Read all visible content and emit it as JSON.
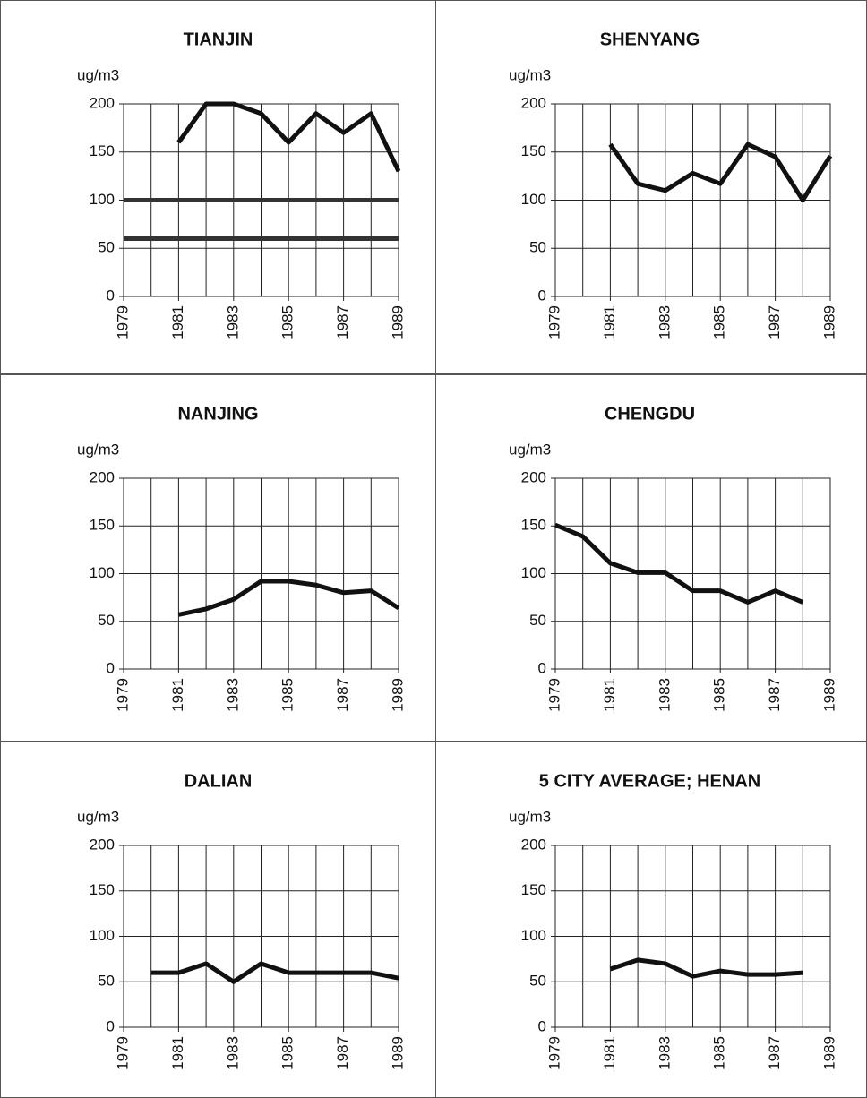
{
  "chart_data": [
    {
      "type": "line",
      "title": "TIANJIN",
      "ylabel": "ug/m3",
      "ylim": [
        0,
        200
      ],
      "yticks": [
        0,
        50,
        100,
        150,
        200
      ],
      "xlim": [
        1979,
        1989
      ],
      "xticks": [
        1979,
        1981,
        1983,
        1985,
        1987,
        1989
      ],
      "xminor": [
        1980,
        1982,
        1984,
        1986,
        1988
      ],
      "grid": true,
      "series": [
        {
          "color": "#111111",
          "x": [
            1981,
            1982,
            1983,
            1984,
            1985,
            1986,
            1987,
            1988,
            1989
          ],
          "values": [
            160,
            200,
            200,
            190,
            160,
            190,
            170,
            190,
            130
          ]
        },
        {
          "color": "#333333",
          "x": [
            1979,
            1989
          ],
          "values": [
            100,
            100
          ]
        },
        {
          "color": "#333333",
          "x": [
            1979,
            1989
          ],
          "values": [
            60,
            60
          ]
        }
      ]
    },
    {
      "type": "line",
      "title": "SHENYANG",
      "ylabel": "ug/m3",
      "ylim": [
        0,
        200
      ],
      "yticks": [
        0,
        50,
        100,
        150,
        200
      ],
      "xlim": [
        1979,
        1989
      ],
      "xticks": [
        1979,
        1981,
        1983,
        1985,
        1987,
        1989
      ],
      "xminor": [
        1980,
        1982,
        1984,
        1986,
        1988
      ],
      "grid": true,
      "series": [
        {
          "color": "#111111",
          "x": [
            1981,
            1982,
            1983,
            1984,
            1985,
            1986,
            1987,
            1988,
            1989
          ],
          "values": [
            158,
            117,
            110,
            128,
            117,
            158,
            145,
            100,
            146
          ]
        }
      ]
    },
    {
      "type": "line",
      "title": "NANJING",
      "ylabel": "ug/m3",
      "ylim": [
        0,
        200
      ],
      "yticks": [
        0,
        50,
        100,
        150,
        200
      ],
      "xlim": [
        1979,
        1989
      ],
      "xticks": [
        1979,
        1981,
        1983,
        1985,
        1987,
        1989
      ],
      "xminor": [
        1980,
        1982,
        1984,
        1986,
        1988
      ],
      "grid": true,
      "series": [
        {
          "color": "#111111",
          "x": [
            1981,
            1982,
            1983,
            1984,
            1985,
            1986,
            1987,
            1988,
            1989
          ],
          "values": [
            57,
            63,
            73,
            92,
            92,
            88,
            80,
            82,
            64
          ]
        }
      ]
    },
    {
      "type": "line",
      "title": "CHENGDU",
      "ylabel": "ug/m3",
      "ylim": [
        0,
        200
      ],
      "yticks": [
        0,
        50,
        100,
        150,
        200
      ],
      "xlim": [
        1979,
        1989
      ],
      "xticks": [
        1979,
        1981,
        1983,
        1985,
        1987,
        1989
      ],
      "xminor": [
        1980,
        1982,
        1984,
        1986,
        1988
      ],
      "grid": true,
      "series": [
        {
          "color": "#111111",
          "x": [
            1979,
            1980,
            1981,
            1982,
            1983,
            1984,
            1985,
            1986,
            1987,
            1988
          ],
          "values": [
            151,
            139,
            111,
            101,
            101,
            82,
            82,
            70,
            82,
            70
          ]
        }
      ]
    },
    {
      "type": "line",
      "title": "DALIAN",
      "ylabel": "ug/m3",
      "ylim": [
        0,
        200
      ],
      "yticks": [
        0,
        50,
        100,
        150,
        200
      ],
      "xlim": [
        1979,
        1989
      ],
      "xticks": [
        1979,
        1981,
        1983,
        1985,
        1987,
        1989
      ],
      "xminor": [
        1980,
        1982,
        1984,
        1986,
        1988
      ],
      "grid": true,
      "series": [
        {
          "color": "#111111",
          "x": [
            1980,
            1981,
            1982,
            1983,
            1984,
            1985,
            1986,
            1987,
            1988,
            1989
          ],
          "values": [
            60,
            60,
            70,
            50,
            70,
            60,
            60,
            60,
            60,
            54
          ]
        }
      ]
    },
    {
      "type": "line",
      "title": "5 CITY AVERAGE; HENAN",
      "ylabel": "ug/m3",
      "ylim": [
        0,
        200
      ],
      "yticks": [
        0,
        50,
        100,
        150,
        200
      ],
      "xlim": [
        1979,
        1989
      ],
      "xticks": [
        1979,
        1981,
        1983,
        1985,
        1987,
        1989
      ],
      "xminor": [
        1980,
        1982,
        1984,
        1986,
        1988
      ],
      "grid": true,
      "series": [
        {
          "color": "#111111",
          "x": [
            1981,
            1982,
            1983,
            1984,
            1985,
            1986,
            1987,
            1988
          ],
          "values": [
            64,
            74,
            70,
            56,
            62,
            58,
            58,
            60
          ]
        }
      ]
    }
  ]
}
